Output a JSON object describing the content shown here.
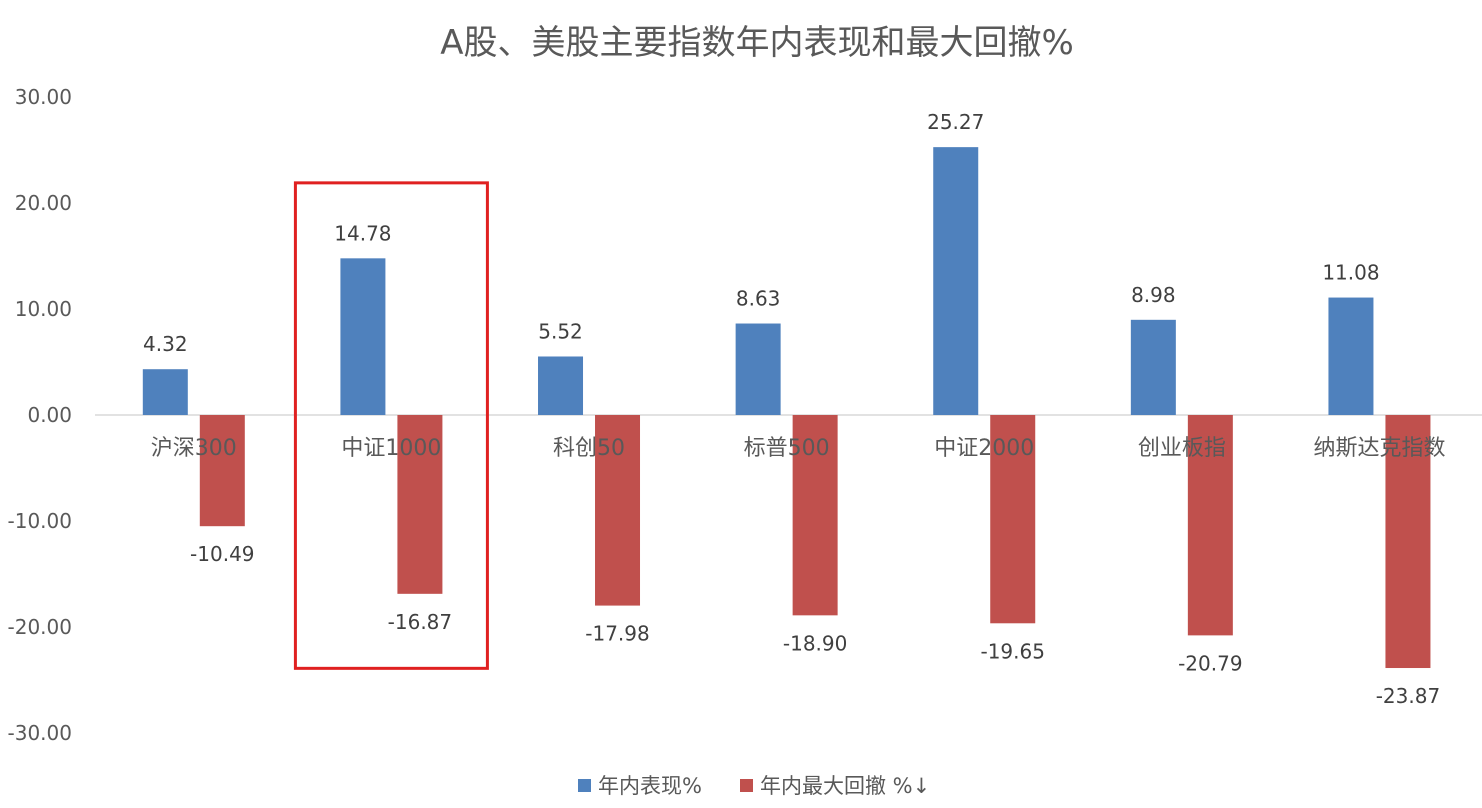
{
  "chart_data": {
    "type": "bar",
    "title": "A股、美股主要指数年内表现和最大回撤%",
    "categories": [
      "沪深300",
      "中证1000",
      "科创50",
      "标普500",
      "中证2000",
      "创业板指",
      "纳斯达克指数"
    ],
    "series": [
      {
        "name": "年内表现%",
        "color": "#4F81BD",
        "values": [
          4.32,
          14.78,
          5.52,
          8.63,
          25.27,
          8.98,
          11.08
        ],
        "labels": [
          "4.32",
          "14.78",
          "5.52",
          "8.63",
          "25.27",
          "8.98",
          "11.08"
        ]
      },
      {
        "name": "年内最大回撤 %↓",
        "color": "#C0504D",
        "values": [
          -10.49,
          -16.87,
          -17.98,
          -18.9,
          -19.65,
          -20.79,
          -23.87
        ],
        "labels": [
          "-10.49",
          "-16.87",
          "-17.98",
          "-18.90",
          "-19.65",
          "-20.79",
          "-23.87"
        ]
      }
    ],
    "ylim": [
      -30,
      30
    ],
    "yticks": [
      "30.00",
      "20.00",
      "10.00",
      "0.00",
      "-10.00",
      "-20.00",
      "-30.00"
    ],
    "ytick_values": [
      30,
      20,
      10,
      0,
      -10,
      -20,
      -30
    ],
    "grid": false,
    "legend_position": "bottom",
    "highlight": {
      "category": "中证1000",
      "color": "#E02020"
    }
  }
}
